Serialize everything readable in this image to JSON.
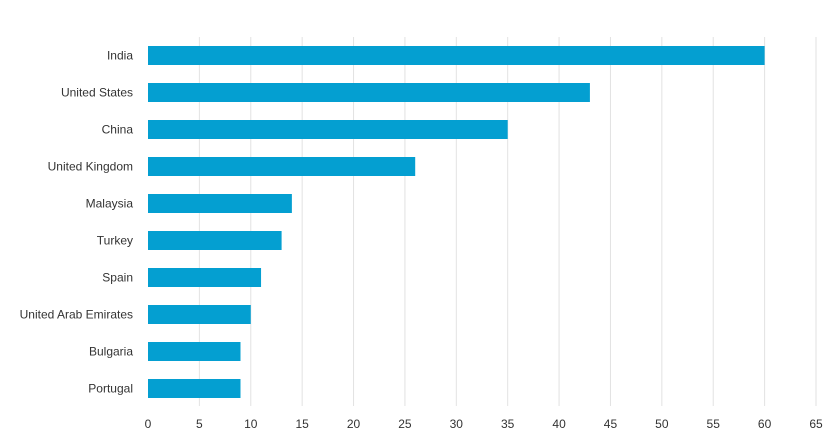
{
  "chart_data": {
    "type": "bar",
    "orientation": "horizontal",
    "categories": [
      "India",
      "United States",
      "China",
      "United Kingdom",
      "Malaysia",
      "Turkey",
      "Spain",
      "United Arab Emirates",
      "Bulgaria",
      "Portugal"
    ],
    "values": [
      60,
      43,
      35,
      26,
      14,
      13,
      11,
      10,
      9,
      9
    ],
    "xlim": [
      0,
      65
    ],
    "x_ticks": [
      0,
      5,
      10,
      15,
      20,
      25,
      30,
      35,
      40,
      45,
      50,
      55,
      60,
      65
    ],
    "grid": "vertical",
    "legend": "none",
    "bar_color": "#049fd1",
    "grid_color": "#e2e2e2",
    "text_color": "#333333"
  }
}
